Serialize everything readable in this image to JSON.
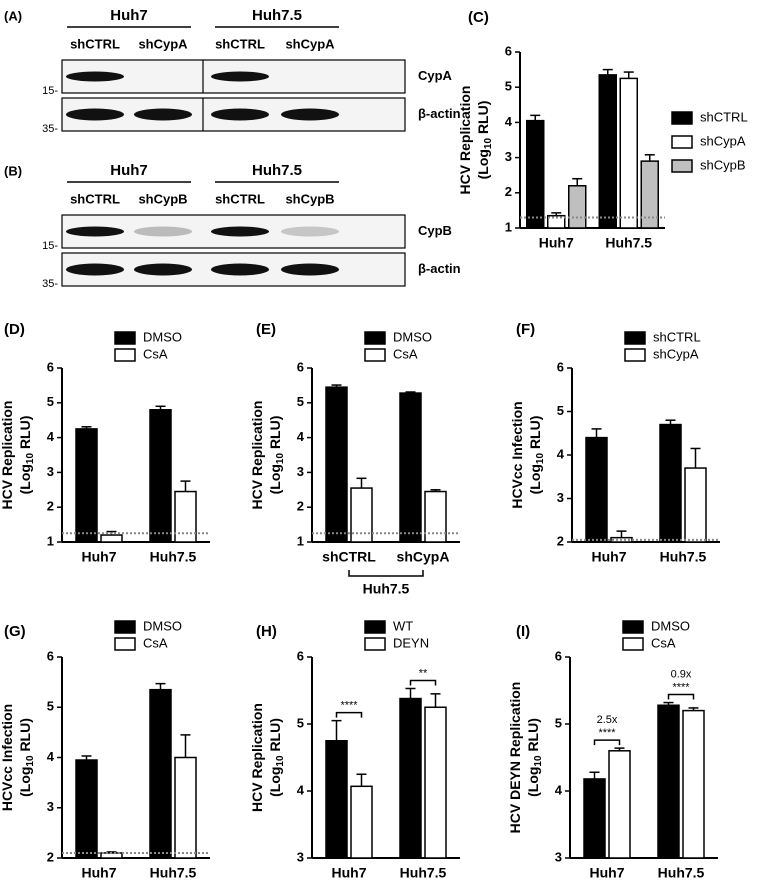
{
  "blots": [
    {
      "panel": "(A)",
      "groups": [
        "Huh7",
        "Huh7.5"
      ],
      "lanes": [
        "shCTRL",
        "shCypA",
        "shCTRL",
        "shCypA"
      ],
      "rows": [
        {
          "name": "CypA",
          "marker": "15-"
        },
        {
          "name": "β-actin",
          "marker": "35-"
        }
      ]
    },
    {
      "panel": "(B)",
      "groups": [
        "Huh7",
        "Huh7.5"
      ],
      "lanes": [
        "shCTRL",
        "shCypB",
        "shCTRL",
        "shCypB"
      ],
      "rows": [
        {
          "name": "CypB",
          "marker": "15-"
        },
        {
          "name": "β-actin",
          "marker": "35-"
        }
      ]
    }
  ],
  "chart_data": [
    {
      "type": "bar",
      "panel": "(C)",
      "ylabel": {
        "line1": "HCV Replication",
        "pre": "(Log",
        "sub": "10",
        "post": " RLU)"
      },
      "categories": [
        "Huh7",
        "Huh7.5"
      ],
      "series": [
        {
          "name": "shCTRL",
          "color": "#000000",
          "values": [
            4.05,
            5.35
          ],
          "errors": [
            0.15,
            0.15
          ]
        },
        {
          "name": "shCypA",
          "color": "#ffffff",
          "values": [
            1.35,
            5.25
          ],
          "errors": [
            0.08,
            0.18
          ]
        },
        {
          "name": "shCypB",
          "color": "#bfbfbf",
          "values": [
            2.2,
            2.9
          ],
          "errors": [
            0.2,
            0.18
          ]
        }
      ],
      "ylim": [
        1,
        6
      ],
      "yticks": [
        1,
        2,
        3,
        4,
        5,
        6
      ],
      "threshold": 1.3,
      "legend": "right"
    },
    {
      "type": "bar",
      "panel": "(D)",
      "ylabel": {
        "line1": "HCV Replication",
        "pre": "(Log",
        "sub": "10",
        "post": " RLU)"
      },
      "categories": [
        "Huh7",
        "Huh7.5"
      ],
      "series": [
        {
          "name": "DMSO",
          "color": "#000000",
          "values": [
            4.25,
            4.8
          ],
          "errors": [
            0.06,
            0.1
          ]
        },
        {
          "name": "CsA",
          "color": "#ffffff",
          "values": [
            1.2,
            2.45
          ],
          "errors": [
            0.1,
            0.3
          ]
        }
      ],
      "ylim": [
        1,
        6
      ],
      "yticks": [
        1,
        2,
        3,
        4,
        5,
        6
      ],
      "threshold": 1.25,
      "legend": "top"
    },
    {
      "type": "bar",
      "panel": "(E)",
      "ylabel": {
        "line1": "HCV Replication",
        "pre": "(Log",
        "sub": "10",
        "post": " RLU)"
      },
      "categories": [
        "shCTRL",
        "shCypA"
      ],
      "group_label": "Huh7.5",
      "series": [
        {
          "name": "DMSO",
          "color": "#000000",
          "values": [
            5.45,
            5.28
          ],
          "errors": [
            0.06,
            0.03
          ]
        },
        {
          "name": "CsA",
          "color": "#ffffff",
          "values": [
            2.55,
            2.45
          ],
          "errors": [
            0.28,
            0.05
          ]
        }
      ],
      "ylim": [
        1,
        6
      ],
      "yticks": [
        1,
        2,
        3,
        4,
        5,
        6
      ],
      "threshold": 1.25,
      "legend": "top"
    },
    {
      "type": "bar",
      "panel": "(F)",
      "ylabel": {
        "line1": "HCVcc Infection",
        "pre": "(Log",
        "sub": "10",
        "post": " RLU)"
      },
      "categories": [
        "Huh7",
        "Huh7.5"
      ],
      "series": [
        {
          "name": "shCTRL",
          "color": "#000000",
          "values": [
            4.4,
            4.7
          ],
          "errors": [
            0.2,
            0.1
          ]
        },
        {
          "name": "shCypA",
          "color": "#ffffff",
          "values": [
            2.1,
            3.7
          ],
          "errors": [
            0.15,
            0.45
          ]
        }
      ],
      "ylim": [
        2,
        6
      ],
      "yticks": [
        2,
        3,
        4,
        5,
        6
      ],
      "threshold": 2.05,
      "legend": "top"
    },
    {
      "type": "bar",
      "panel": "(G)",
      "ylabel": {
        "line1": "HCVcc Infection",
        "pre": "(Log",
        "sub": "10",
        "post": " RLU)"
      },
      "categories": [
        "Huh7",
        "Huh7.5"
      ],
      "series": [
        {
          "name": "DMSO",
          "color": "#000000",
          "values": [
            3.95,
            5.35
          ],
          "errors": [
            0.08,
            0.12
          ]
        },
        {
          "name": "CsA",
          "color": "#ffffff",
          "values": [
            2.1,
            4.0
          ],
          "errors": [
            0.02,
            0.45
          ]
        }
      ],
      "ylim": [
        2,
        6
      ],
      "yticks": [
        2,
        3,
        4,
        5,
        6
      ],
      "threshold": 2.1,
      "legend": "top"
    },
    {
      "type": "bar",
      "panel": "(H)",
      "ylabel": {
        "line1": "HCV Replication",
        "pre": "(Log",
        "sub": "10",
        "post": " RLU)"
      },
      "categories": [
        "Huh7",
        "Huh7.5"
      ],
      "series": [
        {
          "name": "WT",
          "color": "#000000",
          "values": [
            4.75,
            5.38
          ],
          "errors": [
            0.3,
            0.15
          ]
        },
        {
          "name": "DEYN",
          "color": "#ffffff",
          "values": [
            4.07,
            5.25
          ],
          "errors": [
            0.18,
            0.2
          ]
        }
      ],
      "ylim": [
        3,
        6
      ],
      "yticks": [
        3,
        4,
        5,
        6
      ],
      "legend": "top",
      "annotations": [
        {
          "category": 0,
          "lines": [
            "****"
          ]
        },
        {
          "category": 1,
          "lines": [
            "**"
          ]
        }
      ]
    },
    {
      "type": "bar",
      "panel": "(I)",
      "ylabel": {
        "line1": "HCV DEYN Replication",
        "pre": "(Log",
        "sub": "10",
        "post": " RLU)"
      },
      "categories": [
        "Huh7",
        "Huh7.5"
      ],
      "series": [
        {
          "name": "DMSO",
          "color": "#000000",
          "values": [
            4.18,
            5.28
          ],
          "errors": [
            0.1,
            0.04
          ]
        },
        {
          "name": "CsA",
          "color": "#ffffff",
          "values": [
            4.6,
            5.2
          ],
          "errors": [
            0.04,
            0.04
          ]
        }
      ],
      "ylim": [
        3,
        6
      ],
      "yticks": [
        3,
        4,
        5,
        6
      ],
      "legend": "top",
      "annotations": [
        {
          "category": 0,
          "lines": [
            "2.5x",
            "****"
          ]
        },
        {
          "category": 1,
          "lines": [
            "0.9x",
            "****"
          ]
        }
      ]
    }
  ]
}
